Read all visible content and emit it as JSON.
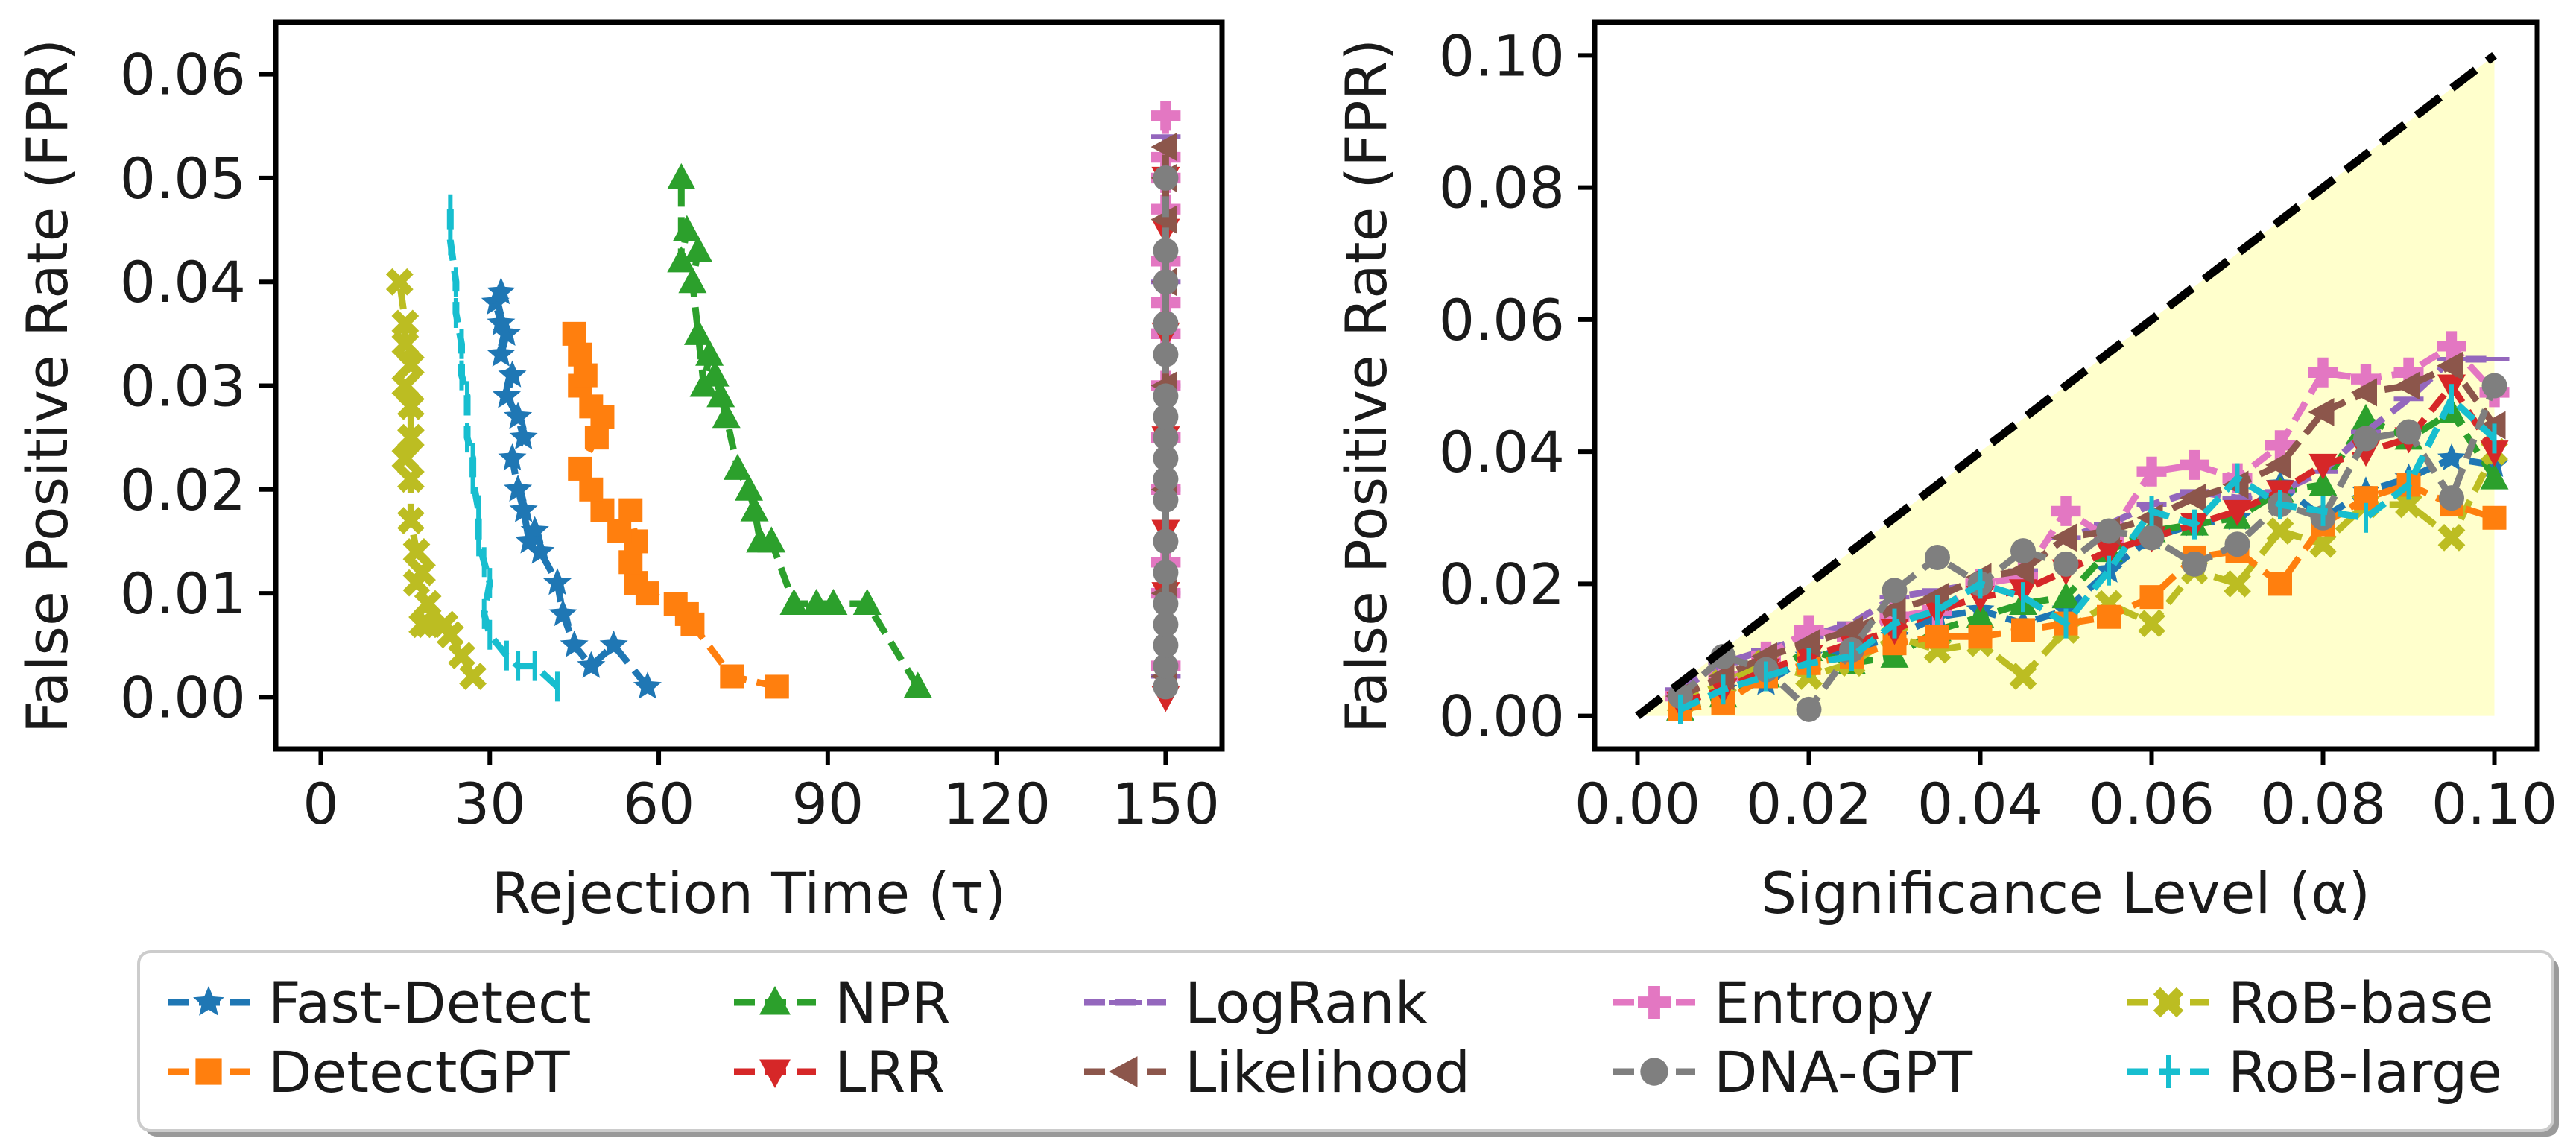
{
  "chart_data": [
    {
      "type": "scatter",
      "xlabel": "Rejection Time (τ)",
      "ylabel": "False Positive Rate (FPR)",
      "xlim": [
        -8,
        160
      ],
      "ylim": [
        -0.005,
        0.065
      ],
      "xticks": [
        0,
        30,
        60,
        90,
        120,
        150
      ],
      "yticks": [
        0.0,
        0.01,
        0.02,
        0.03,
        0.04,
        0.05,
        0.06
      ],
      "grid": false,
      "series": [
        {
          "name": "Fast-Detect",
          "color": "#1f77b4",
          "marker": "star",
          "dash": "dash",
          "points": [
            [
              58,
              0.001
            ],
            [
              52,
              0.005
            ],
            [
              48,
              0.003
            ],
            [
              45,
              0.005
            ],
            [
              43,
              0.008
            ],
            [
              42,
              0.011
            ],
            [
              39,
              0.014
            ],
            [
              38,
              0.016
            ],
            [
              37,
              0.015
            ],
            [
              36,
              0.018
            ],
            [
              35,
              0.02
            ],
            [
              34,
              0.023
            ],
            [
              36,
              0.025
            ],
            [
              35,
              0.027
            ],
            [
              33,
              0.029
            ],
            [
              34,
              0.031
            ],
            [
              32,
              0.033
            ],
            [
              33,
              0.035
            ],
            [
              32,
              0.036
            ],
            [
              31,
              0.038
            ],
            [
              32,
              0.039
            ]
          ]
        },
        {
          "name": "NPR",
          "color": "#2ca02c",
          "marker": "triangle-up",
          "dash": "dash",
          "points": [
            [
              106,
              0.001
            ],
            [
              97,
              0.009
            ],
            [
              91,
              0.009
            ],
            [
              88,
              0.009
            ],
            [
              84,
              0.009
            ],
            [
              80,
              0.015
            ],
            [
              78,
              0.015
            ],
            [
              77,
              0.018
            ],
            [
              76,
              0.02
            ],
            [
              74,
              0.022
            ],
            [
              72,
              0.027
            ],
            [
              71,
              0.029
            ],
            [
              70,
              0.031
            ],
            [
              69,
              0.033
            ],
            [
              68,
              0.03
            ],
            [
              67,
              0.035
            ],
            [
              66,
              0.04
            ],
            [
              67,
              0.043
            ],
            [
              65,
              0.045
            ],
            [
              64,
              0.042
            ],
            [
              64,
              0.05
            ]
          ]
        },
        {
          "name": "LogRank",
          "color": "#9467bd",
          "marker": "hline",
          "dash": "dash",
          "points": [
            [
              150,
              0.002
            ],
            [
              150,
              0.01
            ],
            [
              150,
              0.02
            ],
            [
              150,
              0.03
            ],
            [
              150,
              0.04
            ],
            [
              150,
              0.054
            ]
          ]
        },
        {
          "name": "Entropy",
          "color": "#e377c2",
          "marker": "plus",
          "dash": "dash",
          "points": [
            [
              150,
              0.003
            ],
            [
              150,
              0.01
            ],
            [
              150,
              0.013
            ],
            [
              150,
              0.02
            ],
            [
              150,
              0.025
            ],
            [
              150,
              0.03
            ],
            [
              150,
              0.035
            ],
            [
              150,
              0.038
            ],
            [
              150,
              0.042
            ],
            [
              150,
              0.047
            ],
            [
              150,
              0.05
            ],
            [
              150,
              0.052
            ],
            [
              150,
              0.056
            ]
          ]
        },
        {
          "name": "RoB-base",
          "color": "#bcbd22",
          "marker": "x",
          "dash": "dash",
          "points": [
            [
              27,
              0.002
            ],
            [
              25,
              0.004
            ],
            [
              23,
              0.006
            ],
            [
              22,
              0.007
            ],
            [
              19,
              0.007
            ],
            [
              18,
              0.007
            ],
            [
              19,
              0.009
            ],
            [
              17,
              0.011
            ],
            [
              18,
              0.012
            ],
            [
              17,
              0.014
            ],
            [
              16,
              0.017
            ],
            [
              16,
              0.021
            ],
            [
              15,
              0.023
            ],
            [
              16,
              0.025
            ],
            [
              16,
              0.028
            ],
            [
              15,
              0.03
            ],
            [
              16,
              0.032
            ],
            [
              15,
              0.034
            ],
            [
              15,
              0.036
            ],
            [
              14,
              0.04
            ]
          ]
        },
        {
          "name": "DetectGPT",
          "color": "#ff7f0e",
          "marker": "square",
          "dash": "dash",
          "points": [
            [
              81,
              0.001
            ],
            [
              73,
              0.002
            ],
            [
              66,
              0.007
            ],
            [
              65,
              0.008
            ],
            [
              63,
              0.009
            ],
            [
              58,
              0.01
            ],
            [
              56,
              0.011
            ],
            [
              55,
              0.013
            ],
            [
              56,
              0.015
            ],
            [
              55,
              0.018
            ],
            [
              53,
              0.016
            ],
            [
              50,
              0.018
            ],
            [
              48,
              0.02
            ],
            [
              46,
              0.022
            ],
            [
              49,
              0.025
            ],
            [
              50,
              0.027
            ],
            [
              48,
              0.028
            ],
            [
              46,
              0.03
            ],
            [
              47,
              0.031
            ],
            [
              46,
              0.033
            ],
            [
              45,
              0.035
            ]
          ]
        },
        {
          "name": "LRR",
          "color": "#d62728",
          "marker": "triangle-down",
          "dash": "dash",
          "points": [
            [
              150,
              0.0
            ],
            [
              150,
              0.01
            ],
            [
              150,
              0.016
            ],
            [
              150,
              0.025
            ],
            [
              150,
              0.035
            ],
            [
              150,
              0.045
            ],
            [
              150,
              0.05
            ]
          ]
        },
        {
          "name": "Likelihood",
          "color": "#8c564b",
          "marker": "triangle-left",
          "dash": "dash",
          "points": [
            [
              150,
              0.002
            ],
            [
              150,
              0.01
            ],
            [
              150,
              0.02
            ],
            [
              150,
              0.03
            ],
            [
              150,
              0.04
            ],
            [
              150,
              0.046
            ],
            [
              150,
              0.05
            ],
            [
              150,
              0.053
            ]
          ]
        },
        {
          "name": "DNA-GPT",
          "color": "#7f7f7f",
          "marker": "circle",
          "dash": "dash",
          "points": [
            [
              150,
              0.001
            ],
            [
              150,
              0.003
            ],
            [
              150,
              0.005
            ],
            [
              150,
              0.007
            ],
            [
              150,
              0.009
            ],
            [
              150,
              0.012
            ],
            [
              150,
              0.015
            ],
            [
              150,
              0.019
            ],
            [
              150,
              0.021
            ],
            [
              150,
              0.023
            ],
            [
              150,
              0.025
            ],
            [
              150,
              0.027
            ],
            [
              150,
              0.029
            ],
            [
              150,
              0.033
            ],
            [
              150,
              0.036
            ],
            [
              150,
              0.04
            ],
            [
              150,
              0.043
            ],
            [
              150,
              0.05
            ]
          ]
        },
        {
          "name": "RoB-large",
          "color": "#17becf",
          "marker": "vline",
          "dash": "dash",
          "points": [
            [
              42,
              0.001
            ],
            [
              38,
              0.003
            ],
            [
              35,
              0.003
            ],
            [
              33,
              0.004
            ],
            [
              30,
              0.006
            ],
            [
              29,
              0.008
            ],
            [
              30,
              0.011
            ],
            [
              29,
              0.013
            ],
            [
              28,
              0.015
            ],
            [
              28,
              0.018
            ],
            [
              27,
              0.021
            ],
            [
              27,
              0.023
            ],
            [
              26,
              0.025
            ],
            [
              26,
              0.029
            ],
            [
              25,
              0.031
            ],
            [
              25,
              0.034
            ],
            [
              24,
              0.037
            ],
            [
              24,
              0.04
            ],
            [
              23,
              0.044
            ],
            [
              23,
              0.047
            ]
          ]
        }
      ]
    },
    {
      "type": "line",
      "xlabel": "Significance Level (α)",
      "ylabel": "False Positive Rate (FPR)",
      "xlim": [
        -0.005,
        0.105
      ],
      "ylim": [
        -0.005,
        0.105
      ],
      "xticks": [
        0.0,
        0.02,
        0.04,
        0.06,
        0.08,
        0.1
      ],
      "yticks": [
        0.0,
        0.02,
        0.04,
        0.06,
        0.08,
        0.1
      ],
      "grid": false,
      "reference_line": {
        "x": [
          0.0,
          0.1
        ],
        "y": [
          0.0,
          0.1
        ],
        "color": "#000000"
      },
      "shaded_region_color": "#ffffcc",
      "x": [
        0.005,
        0.01,
        0.015,
        0.02,
        0.025,
        0.03,
        0.035,
        0.04,
        0.045,
        0.05,
        0.055,
        0.06,
        0.065,
        0.07,
        0.075,
        0.08,
        0.085,
        0.09,
        0.095,
        0.1
      ],
      "series": [
        {
          "name": "Fast-Detect",
          "color": "#1f77b4",
          "marker": "star",
          "values": [
            0.002,
            0.004,
            0.005,
            0.009,
            0.01,
            0.012,
            0.015,
            0.016,
            0.014,
            0.016,
            0.022,
            0.027,
            0.029,
            0.03,
            0.035,
            0.03,
            0.034,
            0.036,
            0.039,
            0.038
          ]
        },
        {
          "name": "NPR",
          "color": "#2ca02c",
          "marker": "triangle-up",
          "values": [
            0.001,
            0.003,
            0.006,
            0.01,
            0.008,
            0.009,
            0.013,
            0.015,
            0.017,
            0.018,
            0.025,
            0.028,
            0.029,
            0.03,
            0.034,
            0.035,
            0.045,
            0.042,
            0.046,
            0.036
          ]
        },
        {
          "name": "LogRank",
          "color": "#9467bd",
          "marker": "hline",
          "values": [
            0.004,
            0.008,
            0.01,
            0.012,
            0.014,
            0.018,
            0.019,
            0.02,
            0.022,
            0.027,
            0.029,
            0.032,
            0.034,
            0.033,
            0.034,
            0.037,
            0.043,
            0.048,
            0.054,
            0.054
          ]
        },
        {
          "name": "Entropy",
          "color": "#e377c2",
          "marker": "plus",
          "values": [
            0.003,
            0.006,
            0.009,
            0.013,
            0.012,
            0.015,
            0.016,
            0.02,
            0.021,
            0.031,
            0.027,
            0.037,
            0.038,
            0.036,
            0.041,
            0.052,
            0.051,
            0.052,
            0.056,
            0.049
          ]
        },
        {
          "name": "RoB-base",
          "color": "#bcbd22",
          "marker": "x",
          "values": [
            0.002,
            0.005,
            0.008,
            0.006,
            0.008,
            0.012,
            0.01,
            0.011,
            0.006,
            0.013,
            0.017,
            0.014,
            0.022,
            0.02,
            0.028,
            0.026,
            0.032,
            0.032,
            0.027,
            0.04
          ]
        },
        {
          "name": "DetectGPT",
          "color": "#ff7f0e",
          "marker": "square",
          "values": [
            0.001,
            0.002,
            0.006,
            0.008,
            0.009,
            0.011,
            0.012,
            0.012,
            0.013,
            0.014,
            0.015,
            0.018,
            0.024,
            0.025,
            0.02,
            0.029,
            0.033,
            0.035,
            0.032,
            0.03
          ]
        },
        {
          "name": "LRR",
          "color": "#d62728",
          "marker": "triangle-down",
          "values": [
            0.002,
            0.004,
            0.007,
            0.009,
            0.011,
            0.013,
            0.016,
            0.018,
            0.019,
            0.022,
            0.025,
            0.027,
            0.029,
            0.031,
            0.034,
            0.038,
            0.04,
            0.042,
            0.05,
            0.04
          ]
        },
        {
          "name": "Likelihood",
          "color": "#8c564b",
          "marker": "triangle-left",
          "values": [
            0.003,
            0.006,
            0.009,
            0.011,
            0.013,
            0.016,
            0.018,
            0.021,
            0.022,
            0.027,
            0.028,
            0.03,
            0.033,
            0.035,
            0.038,
            0.046,
            0.049,
            0.05,
            0.053,
            0.044
          ]
        },
        {
          "name": "DNA-GPT",
          "color": "#7f7f7f",
          "marker": "circle",
          "values": [
            0.003,
            0.009,
            0.007,
            0.001,
            0.01,
            0.019,
            0.024,
            0.02,
            0.025,
            0.023,
            0.028,
            0.027,
            0.023,
            0.026,
            0.032,
            0.03,
            0.042,
            0.043,
            0.033,
            0.05
          ]
        },
        {
          "name": "RoB-large",
          "color": "#17becf",
          "marker": "vline",
          "values": [
            0.001,
            0.004,
            0.006,
            0.008,
            0.009,
            0.014,
            0.016,
            0.02,
            0.018,
            0.014,
            0.022,
            0.031,
            0.029,
            0.036,
            0.032,
            0.031,
            0.03,
            0.035,
            0.048,
            0.042
          ]
        }
      ]
    }
  ],
  "legend": {
    "placement": "bottom",
    "items": [
      "Fast-Detect",
      "DetectGPT",
      "NPR",
      "LRR",
      "LogRank",
      "Likelihood",
      "Entropy",
      "DNA-GPT",
      "RoB-base",
      "RoB-large"
    ]
  }
}
